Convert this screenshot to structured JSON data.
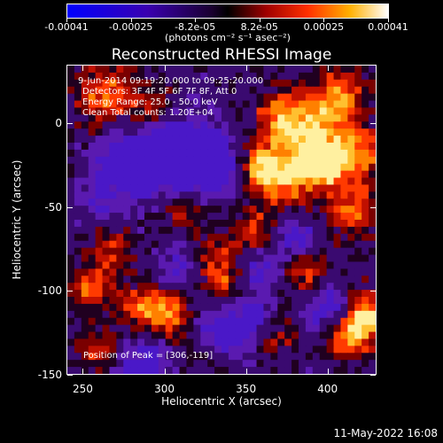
{
  "colorbar": {
    "labels": [
      "-0.00041",
      "-0.00025",
      "-8.2e-05",
      "8.2e-05",
      "0.00025",
      "0.00041"
    ],
    "units": "(photons cm⁻² s⁻¹ asec⁻²)"
  },
  "chart_data": {
    "type": "heatmap",
    "title": "Reconstructed RHESSI Image",
    "xlabel": "Heliocentric X (arcsec)",
    "ylabel": "Heliocentric Y (arcsec)",
    "xlim": [
      240,
      430
    ],
    "ylim": [
      -150,
      35
    ],
    "x_ticks": [
      "250",
      "300",
      "350",
      "400"
    ],
    "y_ticks": [
      "0",
      "-50",
      "-100",
      "-150"
    ],
    "colorbar_range": [
      -0.00041,
      0.00041
    ]
  },
  "annotations": {
    "time": "9-Jun-2014 09:19:20.000 to 09:25:20.000",
    "detectors": "Detectors: 3F 4F 5F 6F 7F 8F, Att 0",
    "energy": "Energy Range: 25.0 - 50.0 keV",
    "clean": "Clean    Total counts: 1.20E+04",
    "peak": "Position of Peak = [306,-119]"
  },
  "datestamp": "11-May-2022 16:08",
  "colors": {
    "background": "#000000",
    "foreground": "#ffffff"
  }
}
